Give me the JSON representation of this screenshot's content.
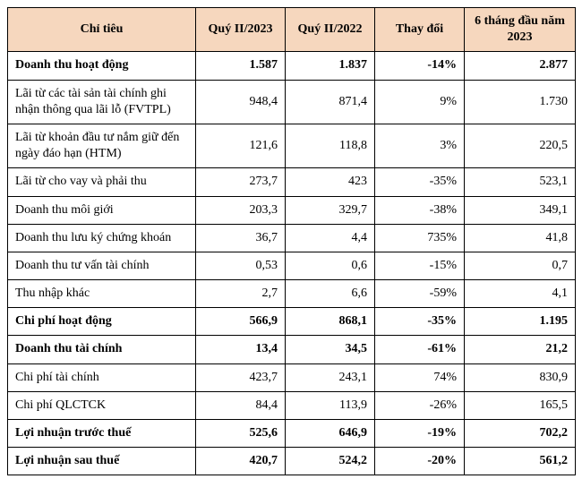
{
  "table": {
    "header_bg": "#f6d7be",
    "columns": [
      "Chỉ tiêu",
      "Quý II/2023",
      "Quý II/2022",
      "Thay đổi",
      "6 tháng đầu năm 2023"
    ],
    "rows": [
      {
        "bold": true,
        "cells": [
          "Doanh thu hoạt động",
          "1.587",
          "1.837",
          "-14%",
          "2.877"
        ]
      },
      {
        "bold": false,
        "cells": [
          "Lãi từ các tài sản tài chính ghi nhận thông qua lãi lỗ (FVTPL)",
          "948,4",
          "871,4",
          "9%",
          "1.730"
        ]
      },
      {
        "bold": false,
        "cells": [
          "Lãi từ khoản đầu tư nắm giữ đến ngày đáo hạn (HTM)",
          "121,6",
          "118,8",
          "3%",
          "220,5"
        ]
      },
      {
        "bold": false,
        "cells": [
          "Lãi từ cho vay và phải thu",
          "273,7",
          "423",
          "-35%",
          "523,1"
        ]
      },
      {
        "bold": false,
        "cells": [
          "Doanh thu môi giới",
          "203,3",
          "329,7",
          "-38%",
          "349,1"
        ]
      },
      {
        "bold": false,
        "cells": [
          "Doanh thu lưu ký chứng khoán",
          "36,7",
          "4,4",
          "735%",
          "41,8"
        ]
      },
      {
        "bold": false,
        "cells": [
          "Doanh thu tư vấn tài chính",
          "0,53",
          "0,6",
          "-15%",
          "0,7"
        ]
      },
      {
        "bold": false,
        "cells": [
          "Thu nhập khác",
          "2,7",
          "6,6",
          "-59%",
          "4,1"
        ]
      },
      {
        "bold": true,
        "cells": [
          "Chi phí hoạt động",
          "566,9",
          "868,1",
          "-35%",
          "1.195"
        ]
      },
      {
        "bold": true,
        "cells": [
          "Doanh thu tài chính",
          "13,4",
          "34,5",
          "-61%",
          "21,2"
        ]
      },
      {
        "bold": false,
        "cells": [
          "Chi phí tài chính",
          "423,7",
          "243,1",
          "74%",
          "830,9"
        ]
      },
      {
        "bold": false,
        "cells": [
          "Chi phí QLCTCK",
          "84,4",
          "113,9",
          "-26%",
          "165,5"
        ]
      },
      {
        "bold": true,
        "cells": [
          "Lợi nhuận trước thuế",
          "525,6",
          "646,9",
          "-19%",
          "702,2"
        ]
      },
      {
        "bold": true,
        "cells": [
          "Lợi nhuận sau thuế",
          "420,7",
          "524,2",
          "-20%",
          "561,2"
        ]
      }
    ]
  }
}
